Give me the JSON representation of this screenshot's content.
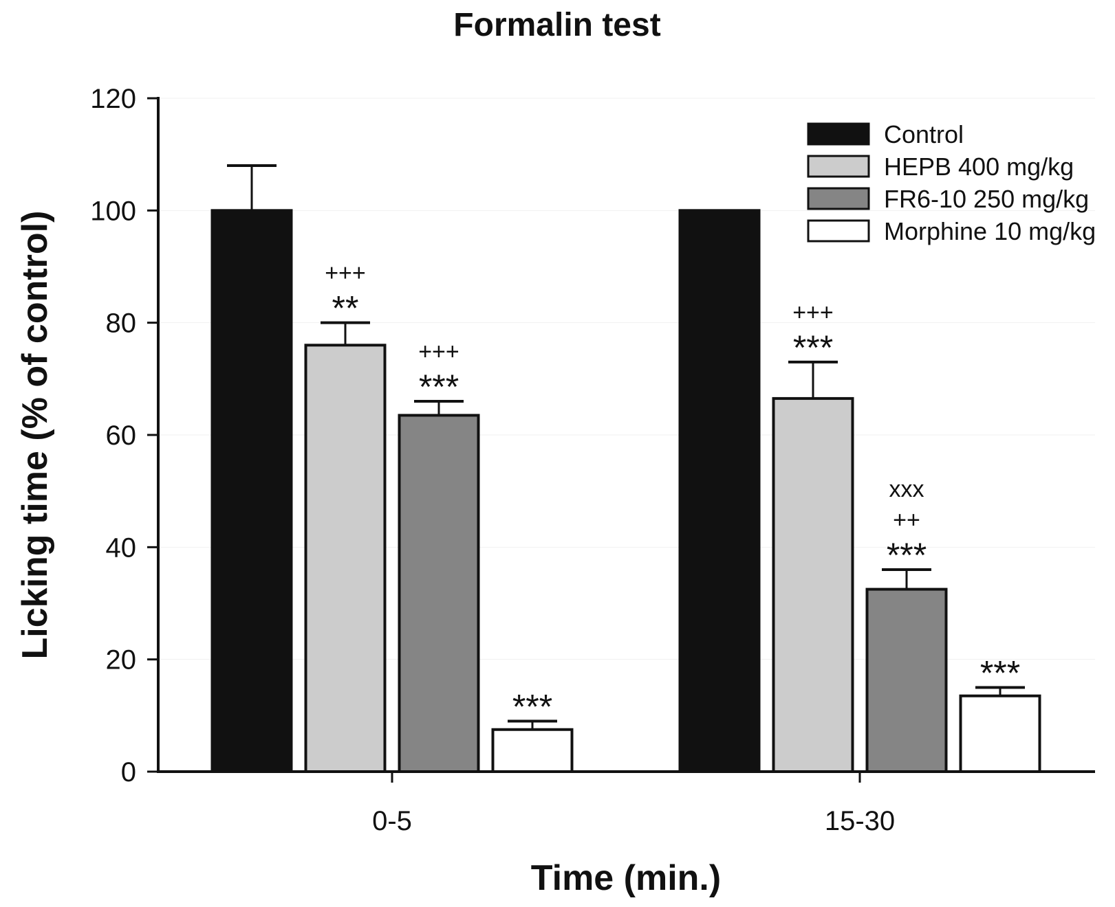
{
  "chart_data": {
    "type": "bar",
    "title": "Formalin test",
    "xlabel": "Time (min.)",
    "ylabel": "Licking time (% of control)",
    "ylim": [
      0,
      120
    ],
    "yticks": [
      0,
      20,
      40,
      60,
      80,
      100,
      120
    ],
    "categories": [
      "0-5",
      "15-30"
    ],
    "legend_position": "top-right",
    "series": [
      {
        "name": "Control",
        "color": "#111111",
        "values": [
          100,
          100
        ],
        "errors": [
          8,
          0
        ],
        "annotations": [
          [],
          []
        ]
      },
      {
        "name": "HEPB 400 mg/kg",
        "color": "#cccccc",
        "values": [
          76,
          66.5
        ],
        "errors": [
          4,
          6.5
        ],
        "annotations": [
          [
            "+++",
            "**"
          ],
          [
            "+++",
            "***"
          ]
        ]
      },
      {
        "name": "FR6-10 250 mg/kg",
        "color": "#858585",
        "values": [
          63.5,
          32.5
        ],
        "errors": [
          2.5,
          3.5
        ],
        "annotations": [
          [
            "+++",
            "***"
          ],
          [
            "xxx",
            "++",
            "***"
          ]
        ]
      },
      {
        "name": "Morphine 10 mg/kg",
        "color": "#ffffff",
        "values": [
          7.5,
          13.5
        ],
        "errors": [
          1.5,
          1.5
        ],
        "annotations": [
          [
            "***"
          ],
          [
            "***"
          ]
        ]
      }
    ]
  }
}
